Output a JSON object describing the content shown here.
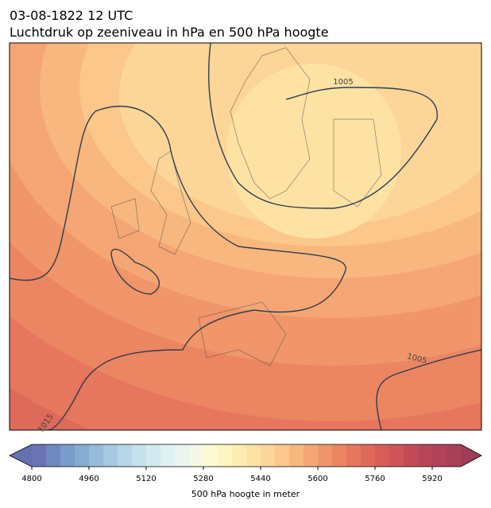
{
  "header": {
    "date": "03-08-1822 12 UTC",
    "title": "Luchtdruk op zeeniveau in hPa en 500 hPa hoogte"
  },
  "map": {
    "contour_labels": [
      "1005",
      "1005",
      "1015"
    ]
  },
  "colorbar": {
    "label": "500 hPa hoogte in meter",
    "lim": [
      4800,
      6000
    ],
    "ticks": [
      4800,
      4960,
      5120,
      5280,
      5440,
      5600,
      5760,
      5920
    ],
    "colors": [
      "#6a74b4",
      "#6f88c0",
      "#7a9cc9",
      "#86acd2",
      "#95bcd9",
      "#a5c9e0",
      "#b5d6e6",
      "#c4e2ec",
      "#d2eaef",
      "#e0f1f1",
      "#ebf5ef",
      "#f4f8e4",
      "#fbfad2",
      "#fdf6c2",
      "#fdecb0",
      "#fde2a4",
      "#fcd598",
      "#fbc78a",
      "#f8b77e",
      "#f5a674",
      "#f1956a",
      "#ec8562",
      "#e6765d",
      "#df6a5a",
      "#d85d58",
      "#cf5458",
      "#c44a58",
      "#b94559",
      "#b14259",
      "#aa3f58"
    ],
    "under_color": "#6470b0",
    "over_color": "#a03c58"
  }
}
